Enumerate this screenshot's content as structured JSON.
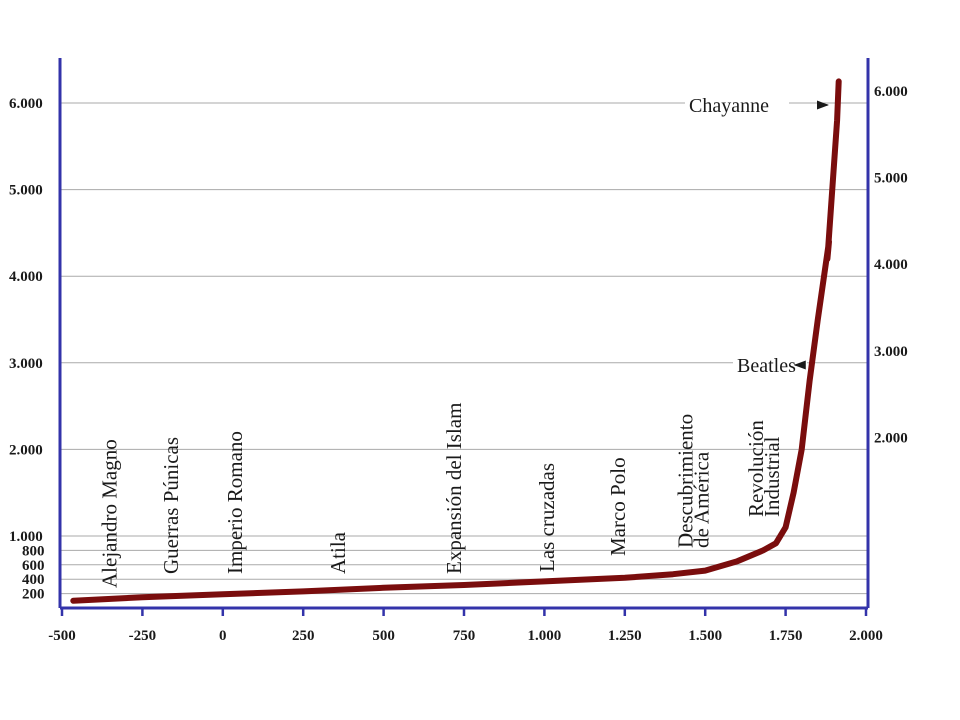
{
  "chart_data": {
    "type": "line",
    "title": "",
    "xlabel": "",
    "ylabel": "",
    "xlim": [
      -500,
      2000
    ],
    "ylim": [
      0,
      6000
    ],
    "grid": "horizontal",
    "colors": {
      "line": "#7a0d0d",
      "axis": "#3333aa",
      "grid": "#aaaaaa",
      "text": "#1a1a1a"
    },
    "x_ticks": [
      {
        "value": -500,
        "label": "-500"
      },
      {
        "value": -250,
        "label": "-250"
      },
      {
        "value": 0,
        "label": "0"
      },
      {
        "value": 250,
        "label": "250"
      },
      {
        "value": 500,
        "label": "500"
      },
      {
        "value": 750,
        "label": "750"
      },
      {
        "value": 1000,
        "label": "1.000"
      },
      {
        "value": 1250,
        "label": "1.250"
      },
      {
        "value": 1500,
        "label": "1.500"
      },
      {
        "value": 1750,
        "label": "1.750"
      },
      {
        "value": 2000,
        "label": "2.000"
      }
    ],
    "y_ticks_left": [
      {
        "value": 200,
        "label": "200"
      },
      {
        "value": 400,
        "label": "400"
      },
      {
        "value": 600,
        "label": "600"
      },
      {
        "value": 800,
        "label": "800"
      },
      {
        "value": 1000,
        "label": "1.000"
      },
      {
        "value": 2000,
        "label": "2.000"
      },
      {
        "value": 3000,
        "label": "3.000"
      },
      {
        "value": 4000,
        "label": "4.000"
      },
      {
        "value": 5000,
        "label": "5.000"
      },
      {
        "value": 6000,
        "label": "6.000"
      }
    ],
    "y_ticks_right": [
      {
        "value": 2000,
        "label": "2.000"
      },
      {
        "value": 3000,
        "label": "3.000"
      },
      {
        "value": 4000,
        "label": "4.000"
      },
      {
        "value": 5000,
        "label": "5.000"
      },
      {
        "value": 6000,
        "label": "6.000"
      }
    ],
    "series": [
      {
        "points": [
          [
            -465,
            100
          ],
          [
            -250,
            150
          ],
          [
            0,
            190
          ],
          [
            250,
            230
          ],
          [
            500,
            280
          ],
          [
            750,
            320
          ],
          [
            1000,
            370
          ],
          [
            1250,
            420
          ],
          [
            1400,
            470
          ],
          [
            1500,
            520
          ],
          [
            1600,
            650
          ],
          [
            1680,
            800
          ],
          [
            1720,
            900
          ],
          [
            1750,
            1100
          ],
          [
            1775,
            1500
          ],
          [
            1800,
            2000
          ],
          [
            1825,
            2800
          ],
          [
            1850,
            3500
          ],
          [
            1885,
            4400
          ],
          [
            1880,
            4200
          ],
          [
            1910,
            5800
          ],
          [
            1915,
            6250
          ]
        ]
      }
    ],
    "events": [
      {
        "label": "Alejandro Magno",
        "x": -330
      },
      {
        "label": "Guerras Púnicas",
        "x": -140
      },
      {
        "label": "Imperio Romano",
        "x": 60
      },
      {
        "label": "Atila",
        "x": 380
      },
      {
        "label": "Expansión del Islam",
        "x": 740
      },
      {
        "label": "Las cruzadas",
        "x": 1030
      },
      {
        "label": "Marco Polo",
        "x": 1250
      },
      {
        "label": "Descubrimiento",
        "x": 1460
      },
      {
        "label": "de América",
        "x": 1510
      },
      {
        "label": "Revolución",
        "x": 1680
      },
      {
        "label": "Industrial",
        "x": 1730
      }
    ],
    "annotations": [
      {
        "label": "Beatles",
        "arrow_to": [
          1805,
          2900
        ]
      },
      {
        "label": "Chayanne",
        "arrow_to": [
          1905,
          5950
        ]
      }
    ]
  }
}
